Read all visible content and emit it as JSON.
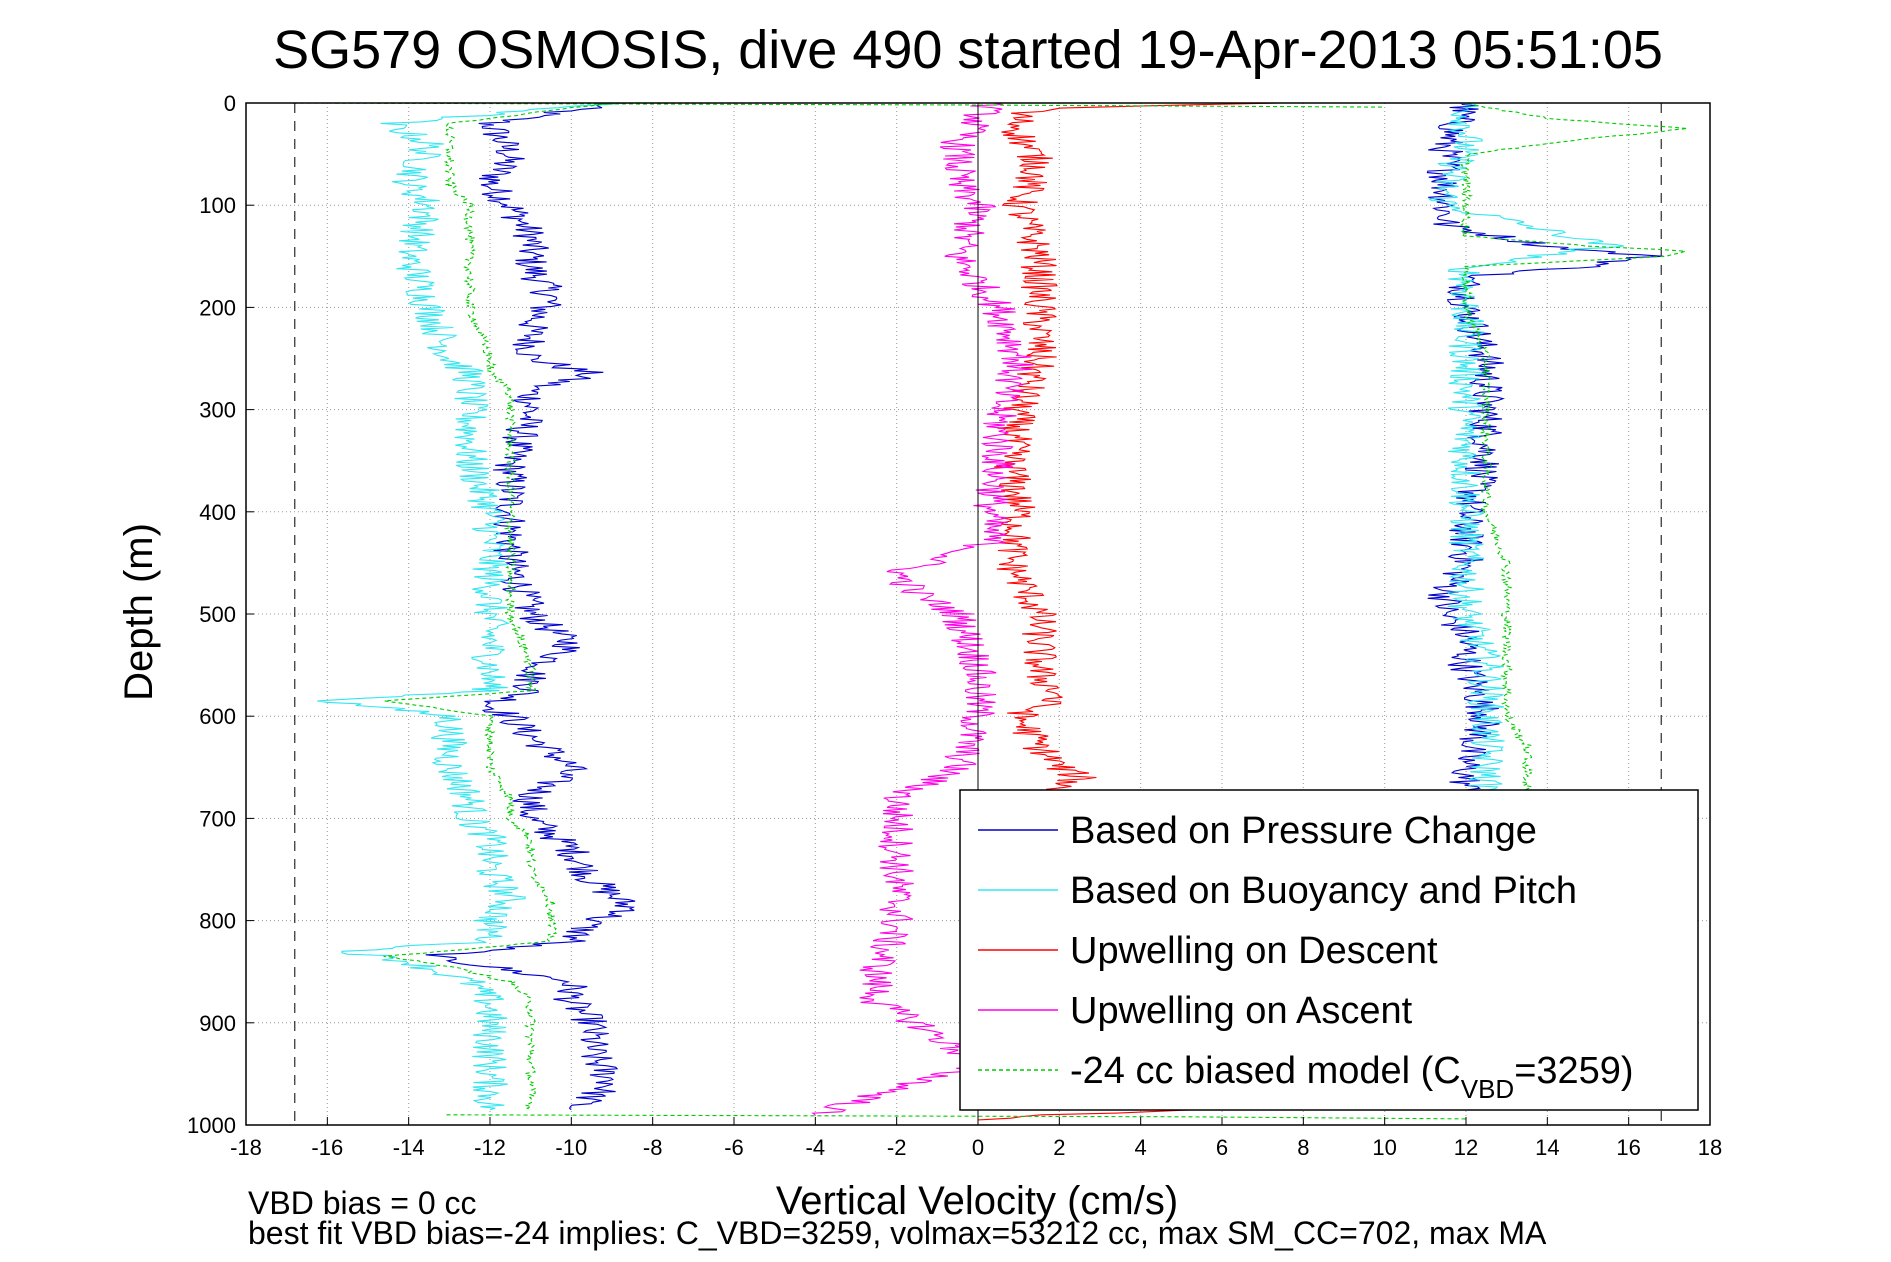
{
  "chart_data": {
    "type": "line",
    "title": "SG579 OSMOSIS, dive 490 started 19-Apr-2013 05:51:05",
    "xlabel": "Vertical Velocity (cm/s)",
    "ylabel": "Depth (m)",
    "xlim": [
      -18,
      18
    ],
    "ylim": [
      0,
      1000
    ],
    "y_reversed": true,
    "grid": true,
    "x_ticks": [
      "-18",
      "-16",
      "-14",
      "-12",
      "-10",
      "-8",
      "-6",
      "-4",
      "-2",
      "0",
      "2",
      "4",
      "6",
      "8",
      "10",
      "12",
      "14",
      "16",
      "18"
    ],
    "y_ticks": [
      "0",
      "100",
      "200",
      "300",
      "400",
      "500",
      "600",
      "700",
      "800",
      "900",
      "1000"
    ],
    "reference_lines_x": [
      -16.8,
      16.8
    ],
    "legend_position": "bottom-right",
    "footer_line1": "VBD bias = 0 cc",
    "footer_line2": "best fit VBD bias=-24 implies: C_VBD=3259, volmax=53212 cc, max SM_CC=702, max MA",
    "series": [
      {
        "name": "Based on Pressure Change",
        "color": "#0000cc",
        "segments": [
          {
            "depth": [
              0,
              20,
              50,
              80,
              100,
              130,
              160,
              190,
              220,
              250,
              265,
              280,
              300,
              350,
              400,
              450,
              500,
              530,
              560,
              575,
              590,
              600,
              620,
              650,
              680,
              700,
              730,
              760,
              790,
              800,
              820,
              835,
              845,
              860,
              880,
              900,
              930,
              960,
              985
            ],
            "x": [
              -9,
              -12,
              -11.5,
              -12,
              -11.5,
              -11,
              -11,
              -10.5,
              -11,
              -11,
              -9.5,
              -11,
              -11,
              -11.5,
              -11.5,
              -11.5,
              -11,
              -10,
              -11,
              -11,
              -12,
              -11.5,
              -11,
              -10,
              -11,
              -11,
              -10,
              -9.5,
              -8.5,
              -9.5,
              -10,
              -13.5,
              -12,
              -10,
              -10,
              -9.5,
              -9.5,
              -9,
              -10
            ]
          },
          {
            "depth": [
              0,
              40,
              80,
              100,
              120,
              140,
              150,
              160,
              170,
              200,
              250,
              280,
              300,
              350,
              400,
              450,
              480,
              500,
              520,
              550,
              600,
              640,
              660,
              690
            ],
            "x": [
              12,
              11.5,
              11.5,
              11.5,
              11.5,
              14,
              16.5,
              15,
              12,
              12,
              12.5,
              12.5,
              12.5,
              12.5,
              12,
              12,
              11.5,
              11.5,
              12,
              12,
              12.5,
              12,
              12,
              12
            ]
          }
        ]
      },
      {
        "name": "Based on Buoyancy and Pitch",
        "color": "#33e6f0",
        "segments": [
          {
            "depth": [
              0,
              20,
              40,
              80,
              100,
              150,
              200,
              250,
              265,
              280,
              300,
              350,
              400,
              450,
              500,
              550,
              575,
              585,
              600,
              620,
              650,
              680,
              700,
              720,
              750,
              780,
              800,
              820,
              830,
              840,
              860,
              880,
              900,
              930,
              960,
              985
            ],
            "x": [
              -9,
              -14.5,
              -13.5,
              -14,
              -13.5,
              -14,
              -13.5,
              -13,
              -12.5,
              -12.5,
              -12.5,
              -12.5,
              -12,
              -12,
              -12,
              -12,
              -12,
              -16,
              -13,
              -13,
              -13,
              -12.5,
              -12.5,
              -12,
              -12,
              -11.5,
              -12,
              -12,
              -15.5,
              -14,
              -12.5,
              -12,
              -12,
              -12,
              -12,
              -12
            ]
          },
          {
            "depth": [
              0,
              40,
              80,
              100,
              140,
              160,
              180,
              200,
              250,
              300,
              350,
              400,
              450,
              500,
              550,
              600,
              650,
              690
            ],
            "x": [
              12,
              12,
              11.5,
              11.5,
              15.5,
              12,
              12,
              12,
              12,
              12,
              12,
              12,
              12,
              12,
              12.5,
              12.5,
              12.5,
              12.5
            ]
          }
        ]
      },
      {
        "name": "Upwelling on Descent",
        "color": "#ff0000",
        "segments": [
          {
            "depth": [
              0,
              5,
              10,
              30,
              60,
              100,
              150,
              200,
              250,
              300,
              350,
              400,
              450,
              500,
              530,
              560,
              580,
              600,
              630,
              650,
              660,
              670,
              690,
              700,
              720
            ],
            "x": [
              7,
              2,
              1,
              1,
              1.5,
              1,
              1.5,
              1.5,
              1.5,
              1,
              0.8,
              1,
              0.8,
              1.5,
              1.5,
              1.5,
              2,
              1,
              1.5,
              2,
              2.5,
              2,
              1.5,
              1,
              1
            ]
          },
          {
            "depth": [
              980,
              985,
              990,
              995
            ],
            "x": [
              1,
              5,
              2,
              0
            ]
          }
        ]
      },
      {
        "name": "Upwelling on Ascent",
        "color": "#ff00e6",
        "segments": [
          {
            "depth": [
              0,
              40,
              80,
              100,
              150,
              200,
              250,
              300,
              350,
              400,
              430,
              460,
              480,
              500,
              550,
              600,
              650,
              680,
              700,
              750,
              800,
              850,
              880,
              900,
              940,
              990
            ],
            "x": [
              0.3,
              -0.5,
              -0.5,
              0,
              -0.5,
              0.5,
              1,
              0.5,
              0.5,
              0.3,
              0.3,
              -2,
              -1.5,
              -0.5,
              0,
              0,
              -0.5,
              -2,
              -2,
              -2,
              -2,
              -2.5,
              -2.5,
              -1.5,
              0,
              -4
            ]
          }
        ]
      },
      {
        "name": "-24 cc biased model (C<sub>VBD</sub>=3259)",
        "color": "#00cc00",
        "dashed": true,
        "segments": [
          {
            "depth": [
              0,
              20,
              40,
              80,
              100,
              150,
              200,
              250,
              265,
              280,
              300,
              350,
              400,
              450,
              500,
              550,
              575,
              585,
              600,
              620,
              650,
              680,
              700,
              720,
              750,
              780,
              800,
              820,
              835,
              845,
              860,
              880,
              900,
              930,
              960,
              985
            ],
            "x": [
              -9,
              -13,
              -13,
              -13,
              -12.5,
              -12.5,
              -12.5,
              -12,
              -12,
              -11.5,
              -11.5,
              -11.5,
              -11.5,
              -11.5,
              -11.5,
              -11,
              -11,
              -14.5,
              -12,
              -12,
              -12,
              -11.5,
              -11.5,
              -11,
              -11,
              -10.5,
              -10.5,
              -10.5,
              -14.5,
              -13,
              -11.5,
              -11,
              -11,
              -11,
              -11,
              -11
            ]
          },
          {
            "depth": [
              0,
              15,
              25,
              35,
              50,
              80,
              100,
              130,
              140,
              145,
              150,
              160,
              180,
              200,
              250,
              300,
              350,
              400,
              450,
              500,
              550,
              600,
              630,
              660,
              690
            ],
            "x": [
              12,
              14,
              17.5,
              15,
              12,
              12,
              12,
              12,
              15,
              17.5,
              17,
              12,
              12,
              12,
              12.5,
              12.5,
              12.5,
              12.5,
              13,
              13,
              13,
              13,
              13.5,
              13.5,
              13.5
            ]
          },
          {
            "depth": [
              0,
              2,
              4
            ],
            "x": [
              -17,
              0,
              10
            ]
          },
          {
            "depth": [
              990,
              992,
              994
            ],
            "x": [
              -13,
              5,
              12
            ]
          }
        ]
      }
    ]
  }
}
